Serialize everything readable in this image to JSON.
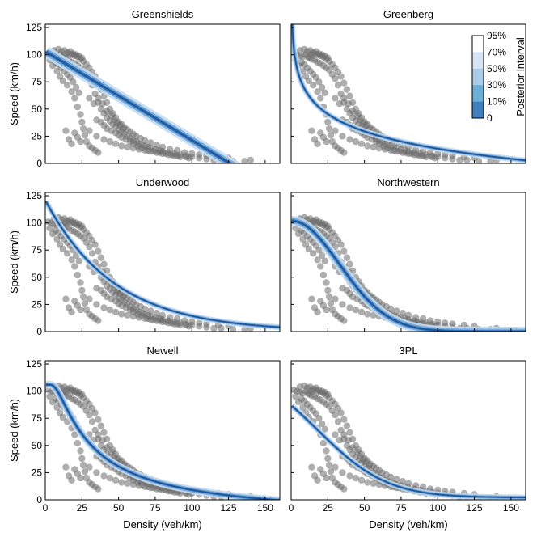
{
  "figure": {
    "ylabel": "Speed (km/h)",
    "xlabel": "Density (veh/km)",
    "colorbar": {
      "label": "Posterior interval",
      "ticks": [
        "95%",
        "70%",
        "50%",
        "30%",
        "10%",
        "0"
      ],
      "colors": [
        "#ffffff",
        "#d6e5f4",
        "#a9cce8",
        "#6baed6",
        "#3e7fc0",
        "#2d4d86"
      ]
    },
    "colors": {
      "scatter": "#6b6b6b",
      "band_outer": "#c6dcef",
      "band_mid": "#6fa8dc",
      "band_inner": "#2f6fb6",
      "median": "#1f4f91"
    }
  },
  "chart_data": [
    {
      "type": "line",
      "title": "Greenshields",
      "model": "greenshields",
      "xlim": [
        0,
        160
      ],
      "ylim": [
        0,
        128
      ],
      "yticks": [
        0,
        25,
        50,
        75,
        100,
        125
      ],
      "xticks": [
        0,
        25,
        50,
        75,
        100,
        125,
        150
      ],
      "params": {
        "vf": 103,
        "kj": 126
      },
      "band_width": 6
    },
    {
      "type": "line",
      "title": "Greenberg",
      "model": "greenberg",
      "xlim": [
        0,
        160
      ],
      "ylim": [
        0,
        128
      ],
      "yticks": [
        0,
        25,
        50,
        75,
        100,
        125
      ],
      "xticks": [
        0,
        25,
        50,
        75,
        100,
        125,
        150
      ],
      "params": {
        "c": 23,
        "kj": 180
      },
      "band_width": 3
    },
    {
      "type": "line",
      "title": "Underwood",
      "model": "underwood",
      "xlim": [
        0,
        160
      ],
      "ylim": [
        0,
        128
      ],
      "yticks": [
        0,
        25,
        50,
        75,
        100,
        125
      ],
      "xticks": [
        0,
        25,
        50,
        75,
        100,
        125,
        150
      ],
      "params": {
        "vf": 121,
        "kc": 47
      },
      "band_width": 3
    },
    {
      "type": "line",
      "title": "Northwestern",
      "model": "northwestern",
      "xlim": [
        0,
        160
      ],
      "ylim": [
        0,
        128
      ],
      "yticks": [
        0,
        25,
        50,
        75,
        100,
        125
      ],
      "xticks": [
        0,
        25,
        50,
        75,
        100,
        125,
        150
      ],
      "params": {
        "vf": 102,
        "kc": 33
      },
      "band_width": 5
    },
    {
      "type": "line",
      "title": "Newell",
      "model": "newell",
      "xlim": [
        0,
        160
      ],
      "ylim": [
        0,
        128
      ],
      "yticks": [
        0,
        25,
        50,
        75,
        100,
        125
      ],
      "xticks": [
        0,
        25,
        50,
        75,
        100,
        125,
        150
      ],
      "params": {
        "vf": 106,
        "lambda": 4.6,
        "kj": 155
      },
      "band_width": 4
    },
    {
      "type": "line",
      "title": "3PL",
      "model": "threepl",
      "xlim": [
        0,
        160
      ],
      "ylim": [
        0,
        128
      ],
      "yticks": [
        0,
        25,
        50,
        75,
        100,
        125
      ],
      "xticks": [
        0,
        25,
        50,
        75,
        100,
        125,
        150
      ],
      "params": {
        "vb": 2,
        "vf": 135,
        "kt": 28,
        "th1": 28,
        "th2": 40
      },
      "band_width": 3
    }
  ],
  "scatter_cloud": [
    [
      2,
      101
    ],
    [
      4,
      100
    ],
    [
      6,
      99
    ],
    [
      8,
      98
    ],
    [
      10,
      100
    ],
    [
      12,
      97
    ],
    [
      14,
      96
    ],
    [
      16,
      95
    ],
    [
      18,
      93
    ],
    [
      20,
      92
    ],
    [
      22,
      90
    ],
    [
      24,
      88
    ],
    [
      26,
      86
    ],
    [
      28,
      82
    ],
    [
      30,
      78
    ],
    [
      32,
      72
    ],
    [
      34,
      64
    ],
    [
      36,
      56
    ],
    [
      38,
      50
    ],
    [
      40,
      46
    ],
    [
      42,
      42
    ],
    [
      44,
      39
    ],
    [
      46,
      36
    ],
    [
      48,
      34
    ],
    [
      50,
      31
    ],
    [
      52,
      29
    ],
    [
      54,
      27
    ],
    [
      56,
      25
    ],
    [
      58,
      23
    ],
    [
      60,
      21
    ],
    [
      62,
      20
    ],
    [
      64,
      18
    ],
    [
      66,
      17
    ],
    [
      68,
      16
    ],
    [
      70,
      15
    ],
    [
      72,
      14
    ],
    [
      75,
      13
    ],
    [
      78,
      12
    ],
    [
      80,
      11
    ],
    [
      84,
      10
    ],
    [
      88,
      9
    ],
    [
      92,
      8
    ],
    [
      96,
      7
    ],
    [
      100,
      6
    ],
    [
      105,
      5
    ],
    [
      110,
      4
    ],
    [
      115,
      3
    ],
    [
      120,
      3
    ],
    [
      128,
      2
    ],
    [
      136,
      2
    ],
    [
      5,
      90
    ],
    [
      8,
      85
    ],
    [
      10,
      80
    ],
    [
      12,
      76
    ],
    [
      15,
      72
    ],
    [
      18,
      66
    ],
    [
      20,
      60
    ],
    [
      22,
      52
    ],
    [
      24,
      45
    ],
    [
      25,
      38
    ],
    [
      26,
      32
    ],
    [
      27,
      26
    ],
    [
      28,
      20
    ],
    [
      30,
      16
    ],
    [
      32,
      14
    ],
    [
      34,
      12
    ],
    [
      36,
      10
    ],
    [
      20,
      28
    ],
    [
      22,
      24
    ],
    [
      24,
      20
    ],
    [
      12,
      98
    ],
    [
      14,
      100
    ],
    [
      16,
      101
    ],
    [
      18,
      100
    ],
    [
      20,
      99
    ],
    [
      22,
      98
    ],
    [
      24,
      96
    ],
    [
      26,
      94
    ],
    [
      28,
      91
    ],
    [
      30,
      88
    ],
    [
      32,
      84
    ],
    [
      34,
      80
    ],
    [
      36,
      74
    ],
    [
      38,
      68
    ],
    [
      40,
      62
    ],
    [
      42,
      56
    ],
    [
      44,
      50
    ],
    [
      46,
      46
    ],
    [
      48,
      42
    ],
    [
      50,
      38
    ],
    [
      52,
      36
    ],
    [
      54,
      33
    ],
    [
      56,
      31
    ],
    [
      58,
      29
    ],
    [
      60,
      27
    ],
    [
      62,
      25
    ],
    [
      65,
      23
    ],
    [
      68,
      21
    ],
    [
      72,
      19
    ],
    [
      76,
      17
    ],
    [
      80,
      15
    ],
    [
      85,
      13
    ],
    [
      90,
      12
    ],
    [
      95,
      10
    ],
    [
      100,
      9
    ],
    [
      105,
      8
    ],
    [
      110,
      7
    ],
    [
      118,
      6
    ],
    [
      125,
      5
    ],
    [
      140,
      3
    ],
    [
      6,
      104
    ],
    [
      9,
      105
    ],
    [
      11,
      103
    ],
    [
      13,
      104
    ],
    [
      15,
      102
    ],
    [
      17,
      103
    ],
    [
      19,
      101
    ],
    [
      21,
      100
    ],
    [
      23,
      99
    ],
    [
      25,
      97
    ],
    [
      3,
      95
    ],
    [
      7,
      93
    ],
    [
      9,
      91
    ],
    [
      11,
      88
    ],
    [
      13,
      85
    ],
    [
      15,
      82
    ],
    [
      17,
      79
    ],
    [
      19,
      75
    ],
    [
      21,
      70
    ],
    [
      23,
      65
    ],
    [
      35,
      40
    ],
    [
      38,
      38
    ],
    [
      40,
      35
    ],
    [
      42,
      32
    ],
    [
      45,
      30
    ],
    [
      48,
      28
    ],
    [
      50,
      26
    ],
    [
      52,
      24
    ],
    [
      55,
      22
    ],
    [
      58,
      20
    ],
    [
      60,
      18
    ],
    [
      63,
      16
    ],
    [
      66,
      14
    ],
    [
      70,
      12
    ],
    [
      74,
      11
    ],
    [
      78,
      10
    ],
    [
      82,
      9
    ],
    [
      86,
      8
    ],
    [
      90,
      7
    ],
    [
      96,
      6
    ],
    [
      30,
      60
    ],
    [
      33,
      55
    ],
    [
      36,
      60
    ],
    [
      39,
      55
    ],
    [
      42,
      48
    ],
    [
      45,
      44
    ],
    [
      47,
      40
    ],
    [
      49,
      37
    ],
    [
      51,
      35
    ],
    [
      53,
      32
    ],
    [
      16,
      22
    ],
    [
      18,
      18
    ],
    [
      14,
      30
    ],
    [
      30,
      30
    ],
    [
      35,
      25
    ],
    [
      40,
      22
    ],
    [
      44,
      20
    ],
    [
      48,
      18
    ],
    [
      52,
      16
    ],
    [
      56,
      15
    ],
    [
      60,
      14
    ],
    [
      64,
      13
    ],
    [
      68,
      12
    ],
    [
      72,
      11
    ],
    [
      76,
      10
    ],
    [
      80,
      9
    ],
    [
      84,
      8
    ],
    [
      88,
      7
    ],
    [
      92,
      6
    ],
    [
      98,
      5
    ]
  ]
}
